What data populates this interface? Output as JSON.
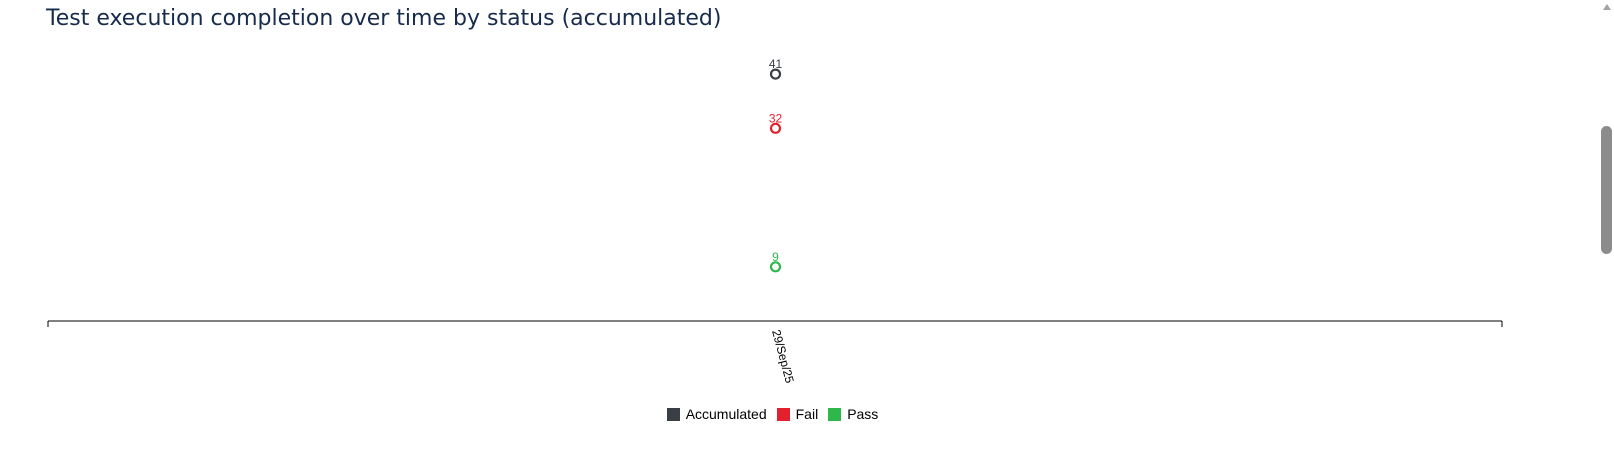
{
  "title": "Test execution completion over time by status (accumulated)",
  "chart_data": {
    "type": "line",
    "title": "Test execution completion over time by status (accumulated)",
    "x": [
      "29/Sep/25"
    ],
    "ylim": [
      0,
      45
    ],
    "grid": false,
    "legend": "bottom-center",
    "show_data_labels": true,
    "series": [
      {
        "name": "Accumulated",
        "values": [
          41
        ],
        "color": "#3a3f45"
      },
      {
        "name": "Fail",
        "values": [
          32
        ],
        "color": "#e5202e"
      },
      {
        "name": "Pass",
        "values": [
          9
        ],
        "color": "#2eb84b"
      }
    ]
  },
  "icons": {
    "scroll_up": "scroll-up-arrow-icon"
  }
}
